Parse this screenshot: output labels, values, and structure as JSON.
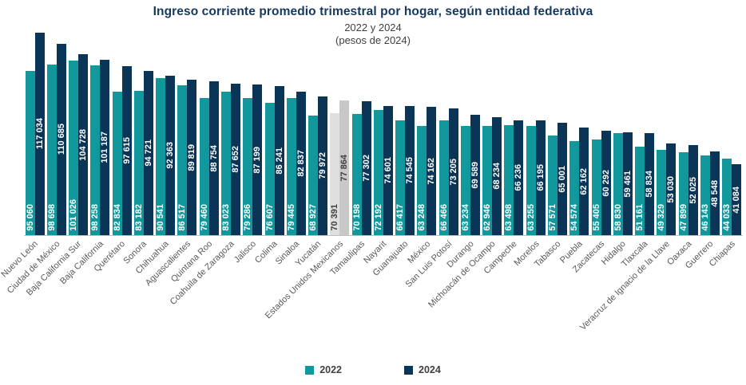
{
  "header": {
    "title": "Ingreso corriente promedio trimestral por hogar, según entidad federativa",
    "subtitle_line1": "2022 y 2024",
    "subtitle_line2": "(pesos de 2024)"
  },
  "legend": {
    "items": [
      {
        "label": "2022",
        "color": "#10989D"
      },
      {
        "label": "2024",
        "color": "#0A3557"
      }
    ]
  },
  "colors": {
    "series_2022": "#10989D",
    "series_2024": "#0A3557",
    "highlight_2022": "#DFDFDF",
    "highlight_2024": "#C8C8C8",
    "value_label_on_color": "#FFFFFF",
    "value_label_on_gray": "#3F3F3F",
    "title": "#17375D",
    "axis_line": "#BFBFBF",
    "axis_label": "#595959"
  },
  "chart_data": {
    "type": "bar",
    "title": "Ingreso corriente promedio trimestral por hogar, según entidad federativa",
    "subtitle": "2022 y 2024 (pesos de 2024)",
    "xlabel": "",
    "ylabel": "",
    "ylim": [
      0,
      117034
    ],
    "grid": false,
    "legend_position": "bottom",
    "value_labels": "rotated 90° inside bars, thousands separated by space",
    "highlight_category": "Estados Unidos Mexicanos",
    "categories": [
      "Nuevo León",
      "Ciudad de México",
      "Baja California Sur",
      "Baja California",
      "Querétaro",
      "Sonora",
      "Chihuahua",
      "Aguascalientes",
      "Quintana Roo",
      "Coahuila de Zaragoza",
      "Jalisco",
      "Colima",
      "Sinaloa",
      "Yucatán",
      "Estados Unidos Mexicanos",
      "Tamaulipas",
      "Nayarit",
      "Guanajuato",
      "México",
      "San Luis Potosí",
      "Durango",
      "Michoacán de Ocampo",
      "Campeche",
      "Morelos",
      "Tabasco",
      "Puebla",
      "Zacatecas",
      "Hidalgo",
      "Tlaxcala",
      "Veracruz de Ignacio de la Llave",
      "Oaxaca",
      "Guerrero",
      "Chiapas"
    ],
    "series": [
      {
        "name": "2022",
        "values": [
          95060,
          98698,
          101026,
          98258,
          82834,
          83182,
          90541,
          86517,
          79460,
          83023,
          79286,
          76607,
          79445,
          68927,
          70391,
          70198,
          72192,
          66417,
          63248,
          66466,
          63234,
          62946,
          63498,
          63255,
          57571,
          54574,
          55405,
          58830,
          51161,
          49329,
          47899,
          46143,
          44033
        ]
      },
      {
        "name": "2024",
        "values": [
          117034,
          110685,
          104728,
          101187,
          97615,
          94721,
          92363,
          89819,
          88754,
          87652,
          87199,
          86241,
          82837,
          79972,
          77864,
          77302,
          74601,
          74545,
          74162,
          73205,
          69589,
          68234,
          66236,
          66195,
          65001,
          62162,
          60292,
          59461,
          58834,
          53030,
          52025,
          48548,
          41084
        ]
      }
    ]
  }
}
